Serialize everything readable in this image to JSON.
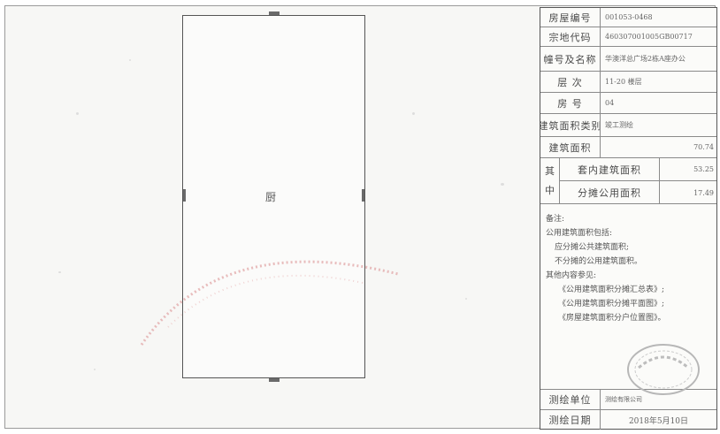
{
  "panel": {
    "fields": [
      {
        "label": "房屋编号",
        "value": "001053-0468"
      },
      {
        "label": "宗地代码",
        "value": "460307001005GB00717"
      },
      {
        "label": "幢号及名称",
        "value": "华澳洋总广场2栋A座办公"
      },
      {
        "label": "层 次",
        "value": "11-20 楼层"
      },
      {
        "label": "房 号",
        "value": "04"
      },
      {
        "label": "建筑面积类别",
        "value": "竣工测绘"
      },
      {
        "label": "建筑面积",
        "value": "70.74"
      }
    ],
    "sub_head": [
      "其",
      "中"
    ],
    "sub_rows": [
      {
        "label": "套内建筑面积",
        "value": "53.25"
      },
      {
        "label": "分摊公用面积",
        "value": "17.49"
      }
    ],
    "notes": {
      "title": "备注:",
      "lines": [
        "公用建筑面积包括:",
        "应分摊公共建筑面积;",
        "不分摊的公用建筑面积。",
        "其他内容参见:",
        "《公用建筑面积分摊汇总表》;",
        "《公用建筑面积分摊平面图》;",
        "《房屋建筑面积分户位置图》。"
      ]
    },
    "footer": [
      {
        "label": "测绘单位",
        "value": "测绘有限公司"
      },
      {
        "label": "测绘日期",
        "value": "2018年5月10日"
      }
    ]
  },
  "plan": {
    "room_label": "厨"
  }
}
